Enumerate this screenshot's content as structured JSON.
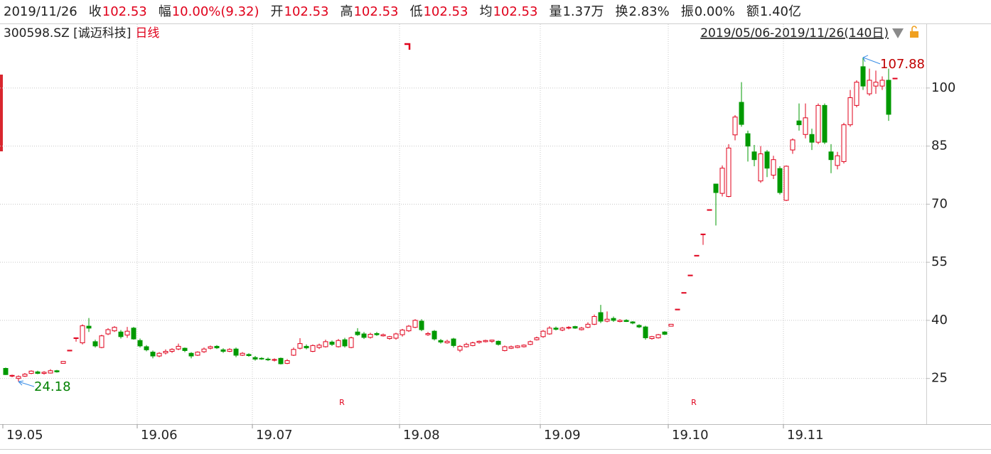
{
  "header": {
    "date": "2019/11/26",
    "quote": [
      {
        "label": "收",
        "value": "102.53",
        "color": "#e0001b"
      },
      {
        "label": "幅",
        "value": "10.00%(9.32)",
        "color": "#e0001b"
      },
      {
        "label": "开",
        "value": "102.53",
        "color": "#e0001b"
      },
      {
        "label": "高",
        "value": "102.53",
        "color": "#e0001b"
      },
      {
        "label": "低",
        "value": "102.53",
        "color": "#e0001b"
      },
      {
        "label": "均",
        "value": "102.53",
        "color": "#e0001b"
      },
      {
        "label": "量",
        "value": "1.37万",
        "color": "#222222"
      },
      {
        "label": "换",
        "value": "2.83%",
        "color": "#222222"
      },
      {
        "label": "振",
        "value": "0.00%",
        "color": "#222222"
      },
      {
        "label": "额",
        "value": "1.40亿",
        "color": "#222222"
      }
    ],
    "symbol": "300598.SZ [诚迈科技]",
    "period": "日线",
    "range": "2019/05/06-2019/11/26(140日)"
  },
  "chart_data": {
    "type": "candlestick",
    "up_color": "#e0001b",
    "down_color": "#009900",
    "ylim": [
      13.2,
      116.3
    ],
    "yticks": [
      25,
      40,
      55,
      70,
      85,
      100
    ],
    "grid": true,
    "xticks": [
      {
        "value": 0,
        "label": "19.05"
      },
      {
        "value": 21,
        "label": "19.06"
      },
      {
        "value": 39,
        "label": "19.07"
      },
      {
        "value": 62,
        "label": "19.08"
      },
      {
        "value": 84,
        "label": "19.09"
      },
      {
        "value": 104,
        "label": "19.10"
      },
      {
        "value": 122,
        "label": "19.11"
      }
    ],
    "annotations": [
      "R",
      "R"
    ],
    "candles": [
      [
        27.6,
        27.8,
        25.9,
        26.0
      ],
      [
        25.6,
        26.0,
        25.3,
        25.8
      ],
      [
        25.0,
        25.8,
        24.18,
        25.5
      ],
      [
        25.6,
        26.4,
        25.4,
        26.1
      ],
      [
        26.3,
        27.1,
        26.1,
        26.9
      ],
      [
        26.7,
        27.0,
        26.1,
        26.3
      ],
      [
        26.3,
        26.9,
        26.0,
        26.6
      ],
      [
        26.4,
        27.4,
        26.3,
        27.0
      ],
      [
        27.0,
        27.2,
        26.5,
        26.7
      ],
      [
        28.9,
        29.4,
        28.9,
        29.4
      ],
      [
        32.1,
        32.3,
        32.0,
        32.3
      ],
      [
        35.5,
        35.5,
        34.5,
        35.5
      ],
      [
        34.2,
        39.0,
        33.8,
        38.6
      ],
      [
        38.5,
        40.6,
        37.0,
        38.0
      ],
      [
        34.5,
        35.0,
        33.0,
        33.4
      ],
      [
        33.0,
        36.3,
        32.8,
        36.0
      ],
      [
        36.5,
        38.0,
        36.2,
        37.6
      ],
      [
        37.3,
        38.5,
        37.0,
        38.2
      ],
      [
        37.0,
        37.5,
        35.3,
        35.8
      ],
      [
        36.2,
        38.3,
        35.5,
        37.2
      ],
      [
        38.0,
        38.3,
        35.0,
        35.2
      ],
      [
        34.8,
        35.3,
        33.0,
        33.4
      ],
      [
        33.2,
        33.6,
        32.0,
        32.4
      ],
      [
        31.8,
        32.2,
        30.2,
        30.8
      ],
      [
        30.8,
        31.8,
        30.5,
        31.5
      ],
      [
        31.6,
        32.5,
        31.2,
        32.0
      ],
      [
        32.0,
        32.8,
        31.6,
        32.5
      ],
      [
        32.6,
        34.0,
        32.3,
        33.3
      ],
      [
        32.8,
        33.0,
        31.8,
        32.2
      ],
      [
        31.5,
        31.8,
        30.2,
        30.8
      ],
      [
        31.0,
        32.0,
        30.8,
        31.8
      ],
      [
        31.9,
        33.0,
        31.6,
        32.6
      ],
      [
        32.8,
        33.5,
        32.5,
        33.2
      ],
      [
        33.3,
        33.6,
        32.6,
        32.9
      ],
      [
        32.4,
        32.8,
        31.6,
        32.0
      ],
      [
        32.0,
        32.8,
        31.8,
        32.5
      ],
      [
        32.6,
        33.0,
        30.5,
        31.0
      ],
      [
        31.0,
        31.8,
        30.8,
        31.5
      ],
      [
        31.2,
        31.5,
        30.6,
        30.9
      ],
      [
        30.4,
        30.8,
        29.6,
        30.0
      ],
      [
        30.2,
        30.5,
        29.8,
        30.1
      ],
      [
        30.0,
        30.4,
        29.5,
        29.8
      ],
      [
        29.7,
        30.2,
        29.4,
        29.9
      ],
      [
        30.2,
        30.4,
        28.6,
        28.8
      ],
      [
        28.9,
        30.0,
        28.7,
        29.6
      ],
      [
        31.0,
        33.0,
        30.8,
        32.5
      ],
      [
        32.8,
        35.4,
        32.5,
        34.0
      ],
      [
        33.3,
        33.8,
        32.5,
        32.9
      ],
      [
        32.0,
        33.8,
        31.8,
        33.5
      ],
      [
        33.0,
        34.0,
        32.6,
        33.6
      ],
      [
        33.2,
        35.0,
        33.0,
        34.5
      ],
      [
        34.4,
        34.8,
        33.4,
        33.8
      ],
      [
        33.2,
        35.2,
        33.0,
        34.8
      ],
      [
        35.0,
        35.5,
        33.0,
        33.4
      ],
      [
        33.0,
        35.8,
        32.8,
        35.5
      ],
      [
        37.0,
        38.0,
        36.0,
        36.3
      ],
      [
        36.5,
        37.0,
        35.2,
        35.6
      ],
      [
        35.6,
        36.8,
        35.3,
        36.4
      ],
      [
        36.6,
        37.0,
        36.0,
        36.3
      ],
      [
        36.0,
        36.6,
        35.8,
        36.3
      ],
      [
        35.3,
        36.0,
        35.0,
        35.8
      ],
      [
        35.4,
        36.8,
        35.0,
        36.5
      ],
      [
        36.3,
        37.8,
        35.8,
        37.5
      ],
      [
        37.3,
        38.8,
        37.0,
        38.5
      ],
      [
        38.2,
        40.3,
        38.0,
        40.0
      ],
      [
        39.8,
        40.3,
        37.2,
        37.6
      ],
      [
        36.3,
        37.0,
        36.0,
        36.6
      ],
      [
        37.2,
        37.5,
        34.8,
        35.2
      ],
      [
        34.8,
        35.2,
        34.0,
        34.4
      ],
      [
        34.2,
        35.0,
        34.0,
        34.6
      ],
      [
        35.2,
        35.5,
        33.0,
        33.5
      ],
      [
        32.3,
        33.6,
        31.8,
        33.3
      ],
      [
        33.2,
        34.2,
        33.0,
        33.8
      ],
      [
        33.5,
        34.5,
        33.3,
        34.2
      ],
      [
        34.3,
        34.8,
        34.0,
        34.6
      ],
      [
        34.5,
        35.0,
        34.3,
        34.8
      ],
      [
        34.6,
        35.0,
        34.2,
        34.9
      ],
      [
        34.6,
        34.8,
        33.5,
        33.8
      ],
      [
        32.2,
        33.5,
        32.0,
        33.2
      ],
      [
        32.8,
        33.5,
        32.6,
        33.2
      ],
      [
        33.0,
        33.6,
        32.8,
        33.4
      ],
      [
        33.2,
        33.8,
        33.0,
        33.6
      ],
      [
        33.8,
        34.8,
        33.6,
        34.5
      ],
      [
        35.0,
        35.8,
        34.8,
        35.5
      ],
      [
        35.8,
        37.5,
        35.5,
        37.2
      ],
      [
        36.5,
        38.5,
        36.3,
        38.0
      ],
      [
        38.0,
        38.4,
        37.4,
        37.7
      ],
      [
        37.5,
        38.3,
        37.2,
        38.0
      ],
      [
        38.0,
        38.5,
        37.7,
        38.2
      ],
      [
        38.4,
        38.6,
        37.8,
        38.0
      ],
      [
        37.6,
        38.3,
        37.4,
        38.0
      ],
      [
        38.2,
        39.5,
        38.0,
        39.0
      ],
      [
        39.0,
        41.5,
        38.8,
        41.0
      ],
      [
        42.0,
        44.0,
        39.3,
        39.8
      ],
      [
        39.8,
        42.3,
        39.5,
        40.3
      ],
      [
        40.5,
        41.0,
        39.6,
        40.0
      ],
      [
        39.7,
        40.3,
        39.5,
        40.0
      ],
      [
        40.0,
        40.3,
        39.6,
        39.7
      ],
      [
        39.6,
        39.8,
        39.0,
        39.3
      ],
      [
        38.7,
        39.0,
        38.0,
        38.3
      ],
      [
        38.3,
        38.6,
        35.0,
        35.5
      ],
      [
        35.3,
        36.0,
        35.0,
        35.8
      ],
      [
        35.5,
        36.5,
        35.3,
        36.3
      ],
      [
        37.0,
        37.2,
        36.2,
        36.4
      ],
      [
        38.5,
        39.0,
        38.5,
        39.0
      ],
      [
        42.7,
        42.9,
        42.7,
        42.9
      ],
      [
        47.0,
        47.2,
        47.0,
        47.2
      ],
      [
        51.5,
        51.7,
        51.5,
        51.7
      ],
      [
        56.6,
        56.8,
        56.6,
        56.8
      ],
      [
        62.3,
        62.3,
        59.5,
        62.3
      ],
      [
        68.4,
        68.6,
        68.4,
        68.6
      ],
      [
        75.2,
        75.3,
        64.5,
        73.0
      ],
      [
        72.8,
        80.0,
        72.0,
        79.3
      ],
      [
        72.0,
        85.5,
        71.8,
        84.5
      ],
      [
        87.9,
        93.0,
        86.5,
        92.5
      ],
      [
        96.3,
        101.5,
        90.0,
        90.6
      ],
      [
        88.2,
        89.0,
        81.0,
        85.0
      ],
      [
        83.5,
        85.3,
        79.8,
        81.5
      ],
      [
        76.0,
        85.0,
        75.5,
        83.0
      ],
      [
        83.5,
        84.0,
        77.0,
        79.3
      ],
      [
        77.5,
        82.5,
        76.5,
        81.5
      ],
      [
        79.2,
        79.8,
        72.5,
        73.0
      ],
      [
        71.0,
        80.0,
        70.8,
        79.8
      ],
      [
        84.0,
        87.0,
        83.0,
        86.6
      ],
      [
        91.5,
        96.0,
        89.0,
        90.5
      ],
      [
        88.0,
        96.0,
        87.0,
        92.3
      ],
      [
        88.0,
        89.5,
        84.0,
        86.0
      ],
      [
        86.0,
        96.0,
        85.5,
        95.5
      ],
      [
        95.5,
        96.0,
        85.5,
        86.0
      ],
      [
        83.5,
        85.5,
        78.0,
        81.5
      ],
      [
        80.0,
        83.5,
        79.0,
        82.5
      ],
      [
        81.0,
        91.0,
        80.5,
        90.5
      ],
      [
        90.5,
        99.5,
        90.0,
        97.5
      ],
      [
        95.5,
        102.0,
        95.0,
        101.5
      ],
      [
        105.5,
        107.88,
        99.5,
        100.5
      ],
      [
        98.5,
        105.0,
        98.0,
        102.0
      ],
      [
        100.5,
        104.5,
        98.5,
        101.5
      ],
      [
        100.5,
        103.0,
        99.5,
        102.0
      ],
      [
        102.0,
        105.0,
        91.5,
        93.2
      ],
      [
        102.53,
        102.53,
        102.53,
        102.53
      ]
    ]
  }
}
